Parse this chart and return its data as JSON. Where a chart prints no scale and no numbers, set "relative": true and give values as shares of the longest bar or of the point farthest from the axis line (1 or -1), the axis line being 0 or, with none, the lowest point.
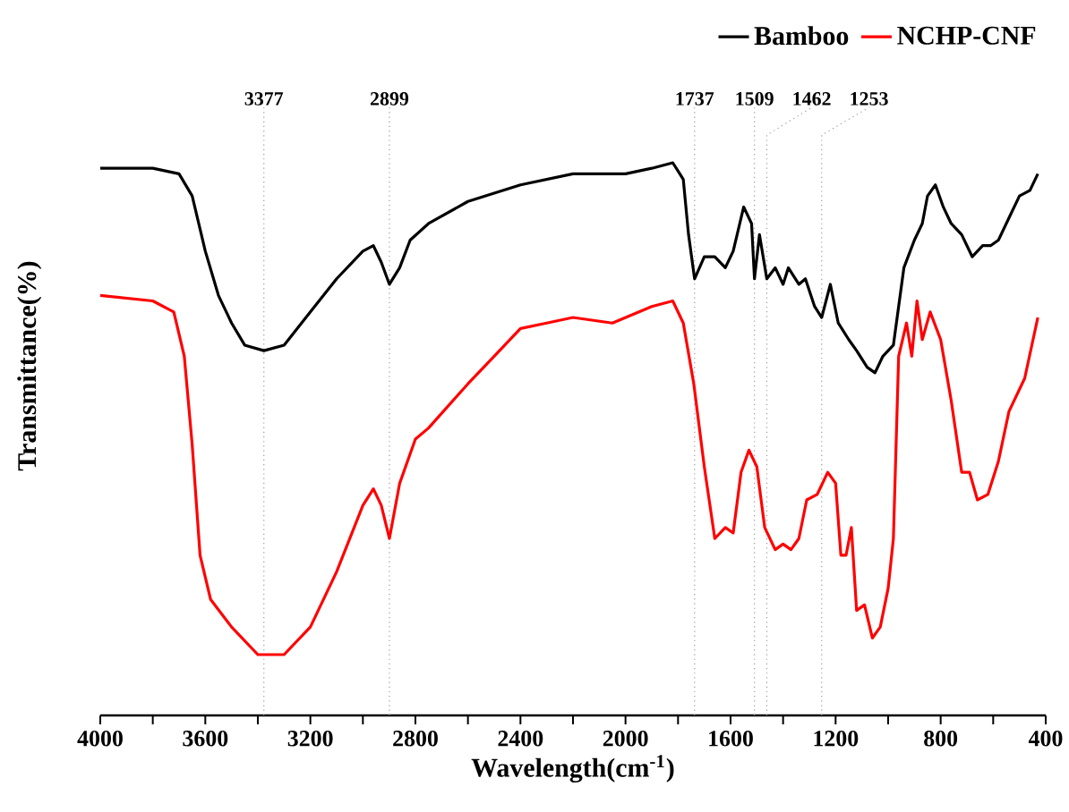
{
  "chart_data": {
    "type": "line",
    "relative": true,
    "xlabel": "Wavelength(cm$^{-1}$)",
    "ylabel": "Transmittance(%)",
    "legend": "top right",
    "marker": "none",
    "line_style": "solid",
    "grid": false,
    "xlim": [
      4000,
      400
    ],
    "xticks": [
      4000,
      {
        "value": 3800,
        "label": null
      },
      3600,
      {
        "value": 3400,
        "label": null
      },
      3200,
      {
        "value": 3000,
        "label": null
      },
      2800,
      {
        "value": 2600,
        "label": null
      },
      2400,
      {
        "value": 2200,
        "label": null
      },
      2000,
      {
        "value": 1800,
        "label": null
      },
      1600,
      {
        "value": 1400,
        "label": null
      },
      1200,
      {
        "value": 1000,
        "label": null
      },
      800,
      {
        "value": 600,
        "label": null
      },
      400
    ],
    "series": [
      {
        "name": "Bamboo",
        "color": "#000000",
        "x": [
          4000,
          3800,
          3700,
          3650,
          3600,
          3550,
          3500,
          3450,
          3377,
          3300,
          3200,
          3100,
          3000,
          2960,
          2930,
          2899,
          2860,
          2820,
          2750,
          2600,
          2400,
          2200,
          2100,
          2000,
          1900,
          1820,
          1780,
          1760,
          1737,
          1700,
          1660,
          1620,
          1590,
          1550,
          1520,
          1509,
          1490,
          1462,
          1430,
          1400,
          1380,
          1340,
          1315,
          1280,
          1253,
          1220,
          1190,
          1150,
          1120,
          1080,
          1050,
          1020,
          980,
          940,
          900,
          870,
          850,
          820,
          790,
          760,
          720,
          680,
          640,
          610,
          580,
          540,
          500,
          460,
          430
        ],
        "values": [
          0.99,
          0.99,
          0.98,
          0.94,
          0.84,
          0.76,
          0.71,
          0.67,
          0.66,
          0.67,
          0.73,
          0.79,
          0.84,
          0.85,
          0.82,
          0.78,
          0.81,
          0.86,
          0.89,
          0.93,
          0.96,
          0.98,
          0.98,
          0.98,
          0.99,
          1,
          0.97,
          0.87,
          0.79,
          0.83,
          0.83,
          0.81,
          0.84,
          0.92,
          0.89,
          0.79,
          0.87,
          0.79,
          0.81,
          0.78,
          0.81,
          0.78,
          0.79,
          0.74,
          0.72,
          0.78,
          0.71,
          0.68,
          0.66,
          0.63,
          0.62,
          0.65,
          0.67,
          0.81,
          0.86,
          0.89,
          0.94,
          0.96,
          0.92,
          0.89,
          0.87,
          0.83,
          0.85,
          0.85,
          0.86,
          0.9,
          0.94,
          0.95,
          0.98
        ]
      },
      {
        "name": "NCHP-CNF",
        "color": "#ff0000",
        "x": [
          4000,
          3800,
          3720,
          3680,
          3650,
          3620,
          3580,
          3500,
          3400,
          3300,
          3200,
          3100,
          3000,
          2960,
          2930,
          2899,
          2860,
          2800,
          2750,
          2600,
          2500,
          2400,
          2300,
          2200,
          2050,
          1900,
          1820,
          1780,
          1740,
          1700,
          1660,
          1620,
          1590,
          1560,
          1530,
          1500,
          1470,
          1430,
          1400,
          1370,
          1340,
          1310,
          1270,
          1230,
          1200,
          1180,
          1160,
          1140,
          1120,
          1090,
          1060,
          1030,
          1000,
          980,
          960,
          930,
          910,
          890,
          870,
          840,
          800,
          760,
          720,
          690,
          660,
          620,
          580,
          540,
          480,
          430
        ],
        "values": [
          0.76,
          0.75,
          0.73,
          0.65,
          0.49,
          0.29,
          0.21,
          0.16,
          0.11,
          0.11,
          0.16,
          0.26,
          0.38,
          0.41,
          0.38,
          0.32,
          0.42,
          0.5,
          0.52,
          0.6,
          0.65,
          0.7,
          0.71,
          0.72,
          0.71,
          0.74,
          0.75,
          0.71,
          0.6,
          0.45,
          0.32,
          0.34,
          0.33,
          0.44,
          0.48,
          0.45,
          0.34,
          0.3,
          0.31,
          0.3,
          0.32,
          0.39,
          0.4,
          0.44,
          0.42,
          0.29,
          0.29,
          0.34,
          0.19,
          0.2,
          0.14,
          0.16,
          0.23,
          0.32,
          0.65,
          0.71,
          0.65,
          0.75,
          0.68,
          0.73,
          0.68,
          0.57,
          0.44,
          0.44,
          0.39,
          0.4,
          0.46,
          0.55,
          0.61,
          0.72
        ]
      }
    ],
    "ref_lines": [
      {
        "axis": "x",
        "value": 3377,
        "label": "3377",
        "color": "#999999",
        "line_style": "dotted"
      },
      {
        "axis": "x",
        "value": 2899,
        "label": "2899",
        "color": "#999999",
        "line_style": "dotted"
      },
      {
        "axis": "x",
        "value": 1737,
        "label": "1737",
        "color": "#999999",
        "line_style": "dotted"
      },
      {
        "axis": "x",
        "value": 1509,
        "label": "1509",
        "color": "#999999",
        "line_style": "dotted"
      },
      {
        "axis": "x",
        "value": 1462,
        "label": "1462",
        "color": "#999999",
        "line_style": "dotted"
      },
      {
        "axis": "x",
        "value": 1253,
        "label": "1253",
        "color": "#999999",
        "line_style": "dotted"
      }
    ]
  }
}
